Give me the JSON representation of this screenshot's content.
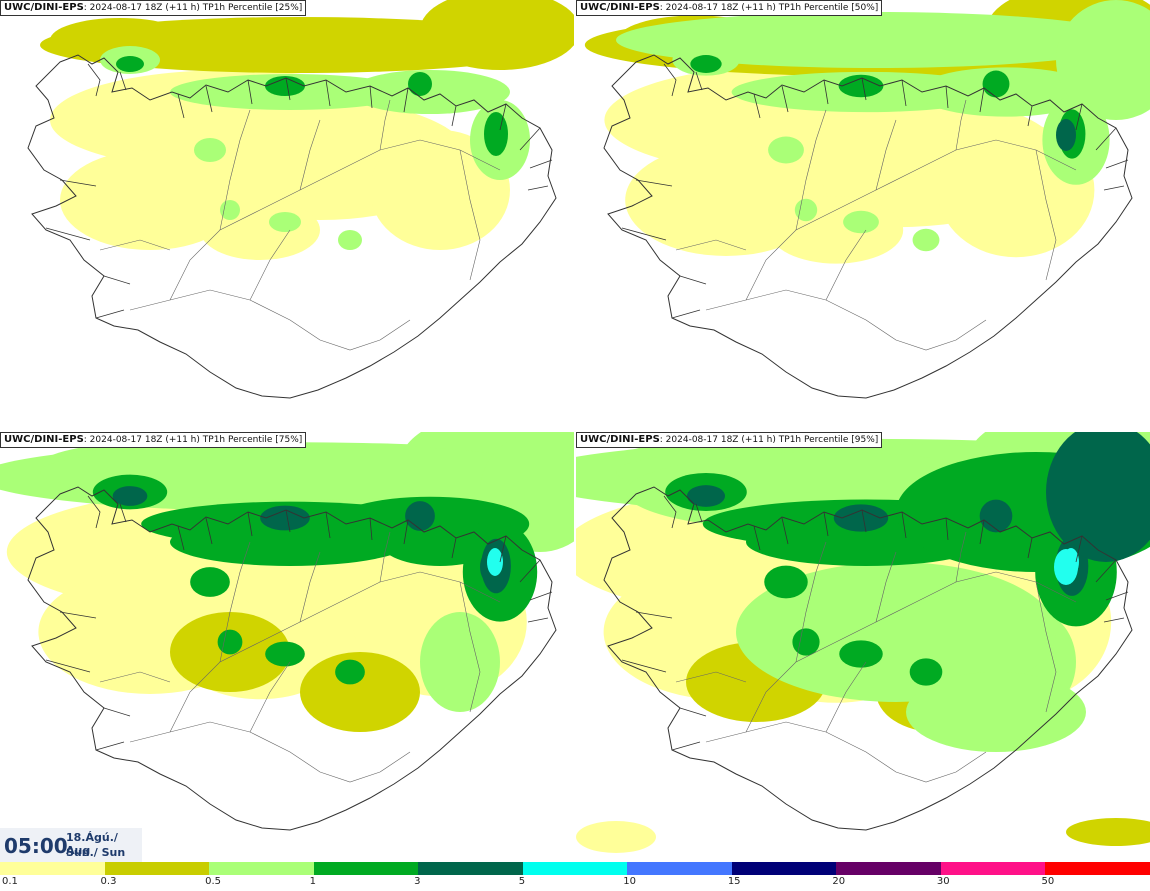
{
  "panels": [
    {
      "model": "UWC/DINI-EPS",
      "run": "2024-08-17 18Z (+11 h)",
      "field": "TP1h Percentile",
      "percentile": "[25%]",
      "intensity": 0
    },
    {
      "model": "UWC/DINI-EPS",
      "run": "2024-08-17 18Z (+11 h)",
      "field": "TP1h Percentile",
      "percentile": "[50%]",
      "intensity": 1
    },
    {
      "model": "UWC/DINI-EPS",
      "run": "2024-08-17 18Z (+11 h)",
      "field": "TP1h Percentile",
      "percentile": "[75%]",
      "intensity": 2
    },
    {
      "model": "UWC/DINI-EPS",
      "run": "2024-08-17 18Z (+11 h)",
      "field": "TP1h Percentile",
      "percentile": "[95%]",
      "intensity": 3
    }
  ],
  "time": {
    "hhmm": "05:00",
    "date_line1": "18.Ágú./ Aug",
    "date_line2": "Sun./ Sun"
  },
  "legend": {
    "labels": [
      "0.1",
      "0.3",
      "0.5",
      "1",
      "3",
      "5",
      "10",
      "15",
      "20",
      "30",
      "50"
    ],
    "colors": [
      "#ffff99",
      "#c8cd00",
      "#aaff77",
      "#00aa22",
      "#00664b",
      "#00ffee",
      "#4477ff",
      "#000077",
      "#660066",
      "#ff1188",
      "#ff0000"
    ]
  },
  "palette": {
    "low": "#ffff99",
    "mid": "#d0d400",
    "light_green": "#aaff77",
    "green": "#00aa22",
    "dark_green": "#00664b",
    "cyan": "#22ffee",
    "coast": "#333333"
  }
}
